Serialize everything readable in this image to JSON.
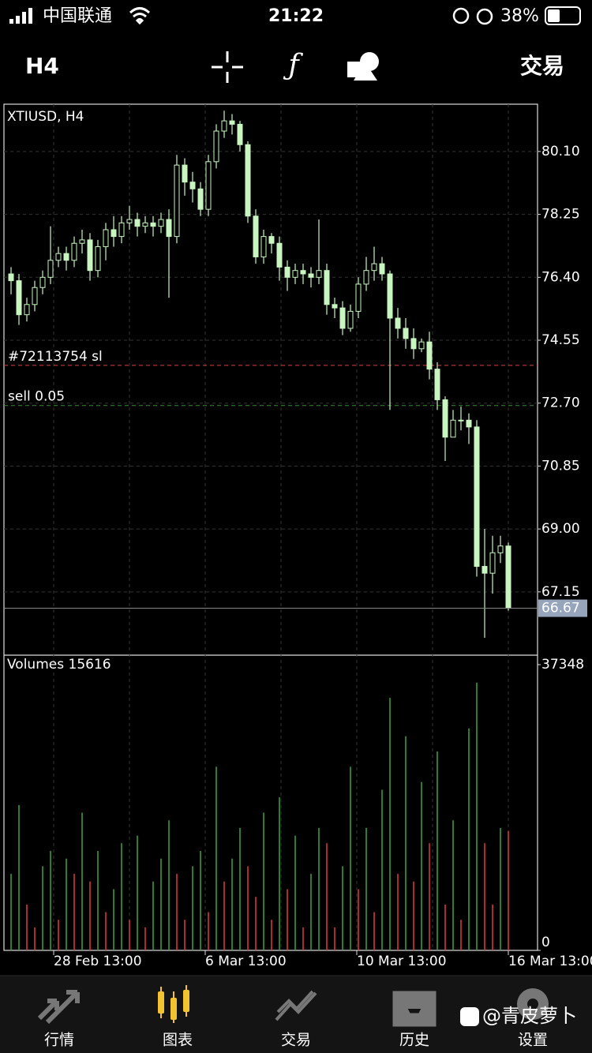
{
  "status_bar": {
    "carrier": "中国联通",
    "time": "21:22",
    "battery": "38%"
  },
  "toolbar": {
    "timeframe": "H4",
    "trade": "交易"
  },
  "chart_data": [
    {
      "type": "candlestick",
      "title": "XTIUSD, H4",
      "color": "#c8f5c0",
      "grid": true,
      "open": [
        76.5,
        76.3,
        75.3,
        75.6,
        76.1,
        76.4,
        76.9,
        77.1,
        76.9,
        77.4,
        77.5,
        76.6,
        77.3,
        77.8,
        77.6,
        78.0,
        78.1,
        77.9,
        78.0,
        77.9,
        78.1,
        77.6,
        79.7,
        79.2,
        79.0,
        78.4,
        79.8,
        80.7,
        81.0,
        80.9,
        80.3,
        78.2,
        77.0,
        77.6,
        77.4,
        76.7,
        76.4,
        76.6,
        76.5,
        76.4,
        76.6,
        75.6,
        75.5,
        74.9,
        75.4,
        76.2,
        76.6,
        76.8,
        76.5,
        75.2,
        74.9,
        74.6,
        74.3,
        74.5,
        73.7,
        72.8,
        71.7,
        72.2,
        72.2,
        72.0,
        67.9,
        67.7,
        68.3,
        68.5
      ],
      "high": [
        76.7,
        76.5,
        75.8,
        76.3,
        76.6,
        77.9,
        77.3,
        77.3,
        77.6,
        77.8,
        77.7,
        77.5,
        78.0,
        78.2,
        78.2,
        78.5,
        78.3,
        78.2,
        78.2,
        78.3,
        78.4,
        80.0,
        79.9,
        79.5,
        79.2,
        80.0,
        80.9,
        81.3,
        81.2,
        81.0,
        80.4,
        78.4,
        77.8,
        77.7,
        77.6,
        76.9,
        76.8,
        76.8,
        76.7,
        78.1,
        76.8,
        75.8,
        75.7,
        75.6,
        76.4,
        77.0,
        77.3,
        77.0,
        76.6,
        75.5,
        75.2,
        74.9,
        74.6,
        74.8,
        73.9,
        72.9,
        72.5,
        72.6,
        72.4,
        72.2,
        69.0,
        68.8,
        68.8,
        68.6
      ],
      "low": [
        75.9,
        75.0,
        75.1,
        75.4,
        75.9,
        76.2,
        76.7,
        76.6,
        76.7,
        77.1,
        76.3,
        76.4,
        76.9,
        77.3,
        77.4,
        77.8,
        77.6,
        77.7,
        77.6,
        77.7,
        75.8,
        77.4,
        78.8,
        78.6,
        78.2,
        78.2,
        79.6,
        80.5,
        80.6,
        80.1,
        78.0,
        76.8,
        76.8,
        77.1,
        76.3,
        76.0,
        76.2,
        76.2,
        76.1,
        76.2,
        75.3,
        75.2,
        74.7,
        74.8,
        75.2,
        76.0,
        76.3,
        76.3,
        72.5,
        74.6,
        74.3,
        74.0,
        74.2,
        73.4,
        72.5,
        71.0,
        71.7,
        71.9,
        71.5,
        67.6,
        65.8,
        67.1,
        68.0,
        66.6
      ],
      "close": [
        76.3,
        75.3,
        75.6,
        76.1,
        76.4,
        76.9,
        77.1,
        76.9,
        77.4,
        77.5,
        76.6,
        77.3,
        77.8,
        77.6,
        78.0,
        78.1,
        77.9,
        78.0,
        77.9,
        78.1,
        77.6,
        79.7,
        79.2,
        79.0,
        78.4,
        79.8,
        80.7,
        81.0,
        80.9,
        80.3,
        78.2,
        77.0,
        77.6,
        77.4,
        76.7,
        76.4,
        76.6,
        76.5,
        76.4,
        76.6,
        75.6,
        75.5,
        74.9,
        75.4,
        76.2,
        76.6,
        76.8,
        76.5,
        75.2,
        74.9,
        74.6,
        74.3,
        74.5,
        73.7,
        72.8,
        71.7,
        72.2,
        72.2,
        72.0,
        67.9,
        67.7,
        68.3,
        68.5,
        66.67
      ],
      "ylim": [
        65.29,
        81.49
      ],
      "yticks": [
        {
          "value": 80.1,
          "label": "80.10"
        },
        {
          "value": 78.25,
          "label": "78.25"
        },
        {
          "value": 76.4,
          "label": "76.40"
        },
        {
          "value": 74.55,
          "label": "74.55"
        },
        {
          "value": 72.7,
          "label": "72.70"
        },
        {
          "value": 70.85,
          "label": "70.85"
        },
        {
          "value": 69,
          "label": "69.00"
        },
        {
          "value": 67.15,
          "label": "67.15"
        }
      ],
      "xlim": [
        -0.9,
        66.7
      ],
      "xticks": [
        {
          "value": 5.4,
          "label": "28 Feb 13:00"
        },
        {
          "value": 24.6,
          "label": "6 Mar 13:00"
        },
        {
          "value": 43.8,
          "label": "10 Mar 13:00"
        },
        {
          "value": 63,
          "label": "16 Mar 13:00"
        }
      ],
      "lines": [
        {
          "label": "#72113754 sl",
          "value": 73.81,
          "color": "#d84040"
        },
        {
          "label": "sell 0.05",
          "value": 72.63,
          "color": "#3a8a3a"
        }
      ]
    },
    {
      "type": "volume",
      "title": "Volumes",
      "up_color": "#3c9a3c",
      "down_color": "#d03a3a",
      "values": [
        10000,
        19000,
        6000,
        3000,
        11000,
        13000,
        4000,
        12000,
        10000,
        18000,
        9000,
        13000,
        5000,
        8000,
        14000,
        4000,
        15000,
        3000,
        9000,
        12000,
        17000,
        10000,
        4000,
        11000,
        13000,
        5000,
        24000,
        9000,
        12000,
        16000,
        11000,
        7000,
        18000,
        4000,
        20000,
        8000,
        15000,
        3000,
        10000,
        16000,
        14000,
        3000,
        11000,
        24000,
        8000,
        16000,
        5000,
        21000,
        33000,
        10000,
        28000,
        9000,
        22000,
        14000,
        26000,
        6000,
        17000,
        4000,
        29000,
        35000,
        14000,
        6000,
        16000,
        15616
      ],
      "ylim": [
        0,
        37348
      ],
      "yticks": [
        0,
        37348
      ]
    }
  ],
  "tabs": [
    {
      "label": "行情"
    },
    {
      "label": "图表",
      "active": true
    },
    {
      "label": "交易"
    },
    {
      "label": "历史"
    },
    {
      "label": "设置"
    }
  ],
  "watermark": "@青皮萝卜"
}
